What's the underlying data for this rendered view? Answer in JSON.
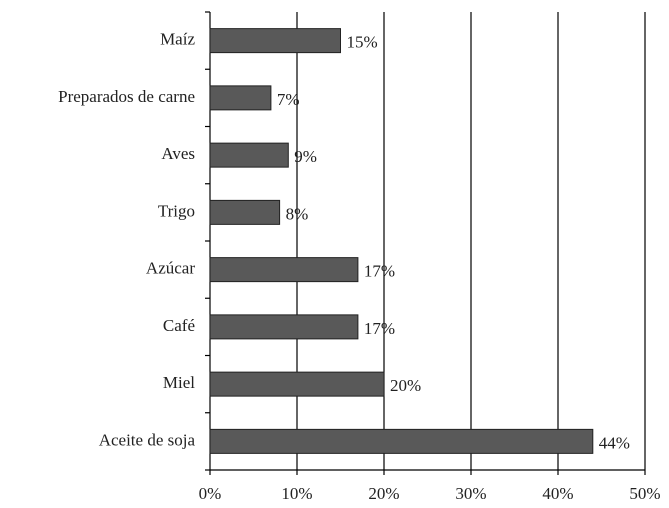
{
  "chart_data": {
    "type": "barh",
    "categories": [
      "Maíz",
      "Preparados de carne",
      "Aves",
      "Trigo",
      "Azúcar",
      "Café",
      "Miel",
      "Aceite de soja"
    ],
    "values": [
      15,
      7,
      9,
      8,
      17,
      17,
      20,
      44
    ],
    "value_labels": [
      "15%",
      "7%",
      "9%",
      "8%",
      "17%",
      "17%",
      "20%",
      "44%"
    ],
    "color": "#595959",
    "xlim": [
      0,
      50
    ],
    "xticks": [
      {
        "value": 0,
        "label": "0%"
      },
      {
        "value": 10,
        "label": "10%"
      },
      {
        "value": 20,
        "label": "20%"
      },
      {
        "value": 30,
        "label": "30%"
      },
      {
        "value": 40,
        "label": "40%"
      },
      {
        "value": 50,
        "label": "50%"
      }
    ],
    "grid": true
  }
}
